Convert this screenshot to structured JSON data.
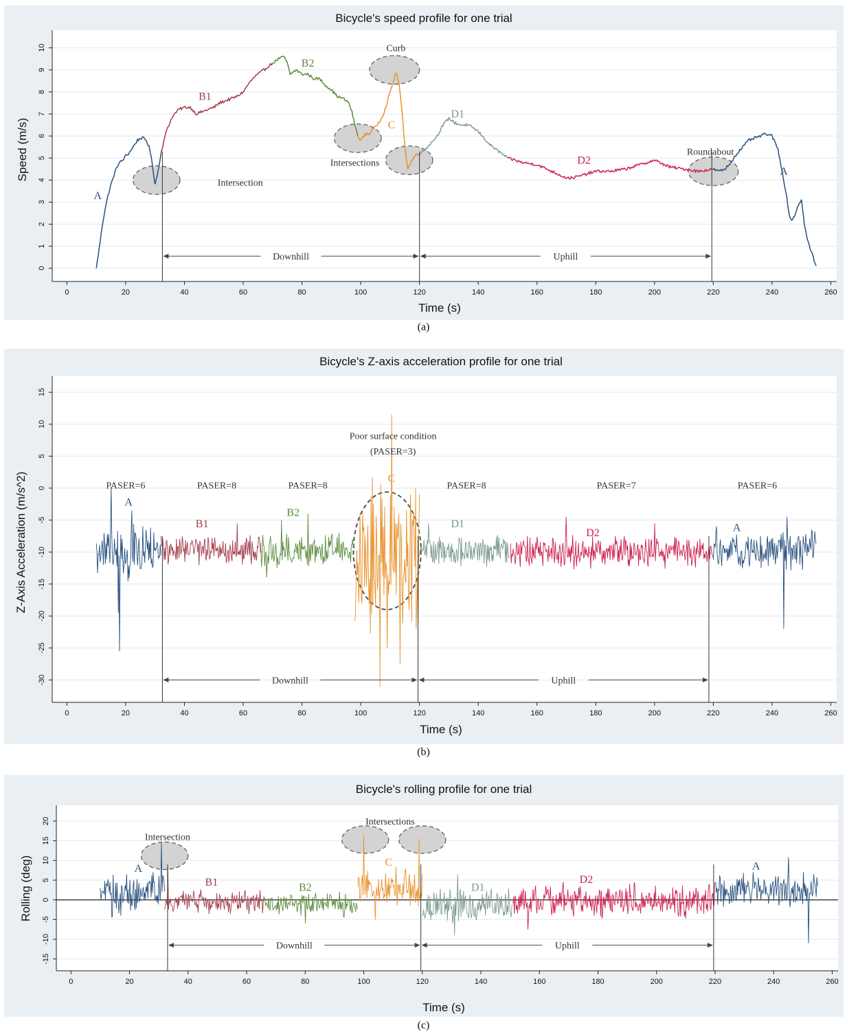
{
  "captions": [
    "(a)",
    "(b)",
    "(c)"
  ],
  "chart_data": [
    {
      "type": "line",
      "title": "Bicycle's speed profile for one trial",
      "xlabel": "Time (s)",
      "ylabel": "Speed (m/s)",
      "xlim": [
        -5,
        262
      ],
      "ylim": [
        -0.6,
        10.8
      ],
      "xticks": [
        "0",
        "20",
        "40",
        "60",
        "80",
        "100",
        "120",
        "140",
        "160",
        "180",
        "200",
        "220",
        "240",
        "260"
      ],
      "yticks": [
        "0",
        "1",
        "2",
        "3",
        "4",
        "5",
        "6",
        "7",
        "8",
        "9",
        "10"
      ],
      "grid": "horizontal",
      "colors": {
        "A": "#264f7d",
        "B1": "#a23a48",
        "B2": "#5a8a3a",
        "C": "#e8912a",
        "D1": "#7a998f",
        "D2": "#cc1f4f"
      },
      "segments": [
        {
          "name": "A",
          "x": [
            10,
            11,
            12,
            13,
            14,
            15,
            16,
            17,
            18,
            19,
            20,
            21,
            22,
            23,
            24,
            25,
            26,
            27,
            28,
            29,
            30,
            31,
            32
          ],
          "values": [
            0.0,
            0.9,
            1.9,
            2.7,
            3.3,
            3.8,
            4.2,
            4.6,
            4.8,
            4.9,
            5.1,
            5.2,
            5.4,
            5.6,
            5.8,
            5.9,
            5.9,
            5.8,
            5.5,
            4.8,
            3.8,
            4.4,
            5.2
          ]
        },
        {
          "name": "B1",
          "x": [
            32,
            34,
            36,
            38,
            40,
            42,
            44,
            46,
            48,
            50,
            52,
            54,
            56,
            58,
            60,
            62,
            64,
            66,
            68,
            70
          ],
          "values": [
            5.2,
            6.3,
            6.9,
            7.2,
            7.3,
            7.3,
            7.0,
            7.1,
            7.2,
            7.3,
            7.5,
            7.6,
            7.7,
            7.8,
            8.0,
            8.4,
            8.7,
            8.9,
            9.1,
            9.3
          ]
        },
        {
          "name": "B2",
          "x": [
            70,
            72,
            74,
            75,
            76,
            78,
            80,
            82,
            84,
            86,
            88,
            90,
            92,
            94,
            96,
            97,
            98,
            99
          ],
          "values": [
            9.3,
            9.5,
            9.6,
            9.3,
            8.8,
            9.0,
            8.8,
            8.8,
            8.6,
            8.6,
            8.3,
            8.1,
            7.8,
            7.7,
            7.5,
            7.1,
            6.5,
            6.0
          ]
        },
        {
          "name": "C",
          "x": [
            99,
            100,
            101,
            102,
            103,
            104,
            105,
            106,
            107,
            108,
            109,
            110,
            111,
            112,
            113,
            114,
            115,
            116,
            117,
            118,
            119,
            120
          ],
          "values": [
            6.0,
            5.8,
            6.0,
            6.1,
            6.1,
            6.3,
            6.4,
            6.6,
            6.8,
            7.1,
            7.5,
            8.0,
            8.4,
            8.9,
            8.4,
            7.2,
            5.6,
            4.5,
            4.8,
            5.0,
            5.2,
            5.2
          ]
        },
        {
          "name": "D1",
          "x": [
            120,
            122,
            124,
            126,
            128,
            130,
            132,
            134,
            136,
            138,
            140,
            142,
            144,
            146,
            148,
            150
          ],
          "values": [
            5.2,
            5.4,
            5.7,
            6.0,
            6.5,
            6.8,
            6.6,
            6.5,
            6.5,
            6.4,
            6.2,
            5.9,
            5.6,
            5.4,
            5.2,
            5.0
          ]
        },
        {
          "name": "D2",
          "x": [
            150,
            155,
            160,
            165,
            170,
            172,
            175,
            180,
            185,
            190,
            195,
            200,
            205,
            210,
            215,
            220
          ],
          "values": [
            5.0,
            4.8,
            4.7,
            4.4,
            4.1,
            4.1,
            4.2,
            4.4,
            4.4,
            4.5,
            4.7,
            4.9,
            4.6,
            4.5,
            4.4,
            4.5
          ]
        },
        {
          "name": "A",
          "x": [
            220,
            222,
            224,
            226,
            228,
            230,
            232,
            234,
            236,
            238,
            240,
            242,
            244,
            245,
            246,
            247,
            248,
            249,
            250,
            251,
            252,
            253,
            254,
            255
          ],
          "values": [
            4.5,
            4.4,
            4.5,
            4.8,
            5.2,
            5.5,
            5.8,
            5.9,
            6.0,
            6.1,
            6.0,
            5.4,
            4.0,
            3.2,
            2.3,
            2.2,
            2.5,
            2.9,
            3.1,
            2.0,
            1.3,
            0.9,
            0.5,
            0.1
          ]
        }
      ],
      "segment_labels": [
        {
          "text": "A",
          "x": 10.5,
          "y": 3.3,
          "series": "A"
        },
        {
          "text": "B1",
          "x": 47,
          "y": 7.8,
          "series": "B1"
        },
        {
          "text": "B2",
          "x": 82,
          "y": 9.3,
          "series": "B2"
        },
        {
          "text": "C",
          "x": 110.5,
          "y": 6.5,
          "series": "C"
        },
        {
          "text": "D1",
          "x": 133,
          "y": 7.0,
          "series": "D1"
        },
        {
          "text": "D2",
          "x": 176,
          "y": 4.9,
          "series": "D2"
        },
        {
          "text": "A",
          "x": 244,
          "y": 4.4,
          "series": "A"
        }
      ],
      "annotations": [
        {
          "text": "Intersection",
          "x": 59,
          "y": 3.9
        },
        {
          "text": "Intersections",
          "x": 98,
          "y": 4.8
        },
        {
          "text": "Curb",
          "x": 112,
          "y": 10.0
        },
        {
          "text": "Roundabout",
          "x": 219,
          "y": 5.3
        }
      ],
      "ellipses": [
        {
          "cx": 30.5,
          "cy": 4.0,
          "rx": 8,
          "ry": 0.65
        },
        {
          "cx": 99,
          "cy": 5.9,
          "rx": 8,
          "ry": 0.65
        },
        {
          "cx": 111.5,
          "cy": 9.0,
          "rx": 8.5,
          "ry": 0.65
        },
        {
          "cx": 116.5,
          "cy": 4.9,
          "rx": 8,
          "ry": 0.65
        },
        {
          "cx": 220,
          "cy": 4.4,
          "rx": 8.5,
          "ry": 0.65
        }
      ],
      "vlines": [
        32.5,
        120,
        219.5
      ],
      "vline_ymax": 5.3,
      "arrows": [
        {
          "text": "Downhill",
          "x1": 32.5,
          "x2": 120,
          "y": 0.55
        },
        {
          "text": "Uphill",
          "x1": 120,
          "x2": 219.5,
          "y": 0.55
        }
      ],
      "zero_line": false
    },
    {
      "type": "line",
      "title": "Bicycle's Z-axis acceleration profile for one trial",
      "xlabel": "Time (s)",
      "ylabel": "Z-Axis Acceleration (m/s^2)",
      "xlim": [
        -5,
        262
      ],
      "ylim": [
        -33.5,
        17.5
      ],
      "xticks": [
        "0",
        "20",
        "40",
        "60",
        "80",
        "100",
        "120",
        "140",
        "160",
        "180",
        "200",
        "220",
        "240",
        "260"
      ],
      "yticks": [
        "15",
        "10",
        "5",
        "0",
        "-5",
        "-10",
        "-15",
        "-20",
        "-25",
        "-30"
      ],
      "grid": "horizontal",
      "colors": {
        "A": "#264f7d",
        "B1": "#a23a48",
        "B2": "#5a8a3a",
        "C": "#e8912a",
        "D1": "#7a998f",
        "D2": "#cc1f4f"
      },
      "noise": [
        {
          "name": "A",
          "x0": 10,
          "x1": 32,
          "mean": -9.8,
          "amp": 5.0,
          "spikes": [
            [
              15,
              0.2
            ],
            [
              18,
              -25.5
            ],
            [
              17.5,
              -19.5
            ],
            [
              22,
              -3.5
            ]
          ]
        },
        {
          "name": "B1",
          "x0": 32,
          "x1": 66,
          "mean": -9.8,
          "amp": 3.0,
          "spikes": [
            [
              58,
              -5.5
            ]
          ]
        },
        {
          "name": "B2",
          "x0": 66,
          "x1": 98,
          "mean": -9.8,
          "amp": 3.0,
          "spikes": [
            [
              82,
              -4.0
            ],
            [
              73,
              -5.0
            ],
            [
              68,
              -14.0
            ]
          ]
        },
        {
          "name": "C",
          "x0": 98,
          "x1": 120,
          "mean": -9.8,
          "amp": 14.0,
          "spikes": [
            [
              110.5,
              11.5
            ],
            [
              106.5,
              -31.0
            ],
            [
              109,
              -25.0
            ],
            [
              113.5,
              -27.5
            ],
            [
              119,
              -22.0
            ],
            [
              117,
              -1.0
            ]
          ]
        },
        {
          "name": "D1",
          "x0": 120,
          "x1": 151,
          "mean": -9.8,
          "amp": 3.0,
          "spikes": [
            [
              123,
              -5.5
            ]
          ]
        },
        {
          "name": "D2",
          "x0": 151,
          "x1": 220,
          "mean": -9.8,
          "amp": 3.0,
          "spikes": [
            [
              170,
              -4.5
            ],
            [
              200,
              -5.5
            ]
          ]
        },
        {
          "name": "A",
          "x0": 220,
          "x1": 255,
          "mean": -9.8,
          "amp": 3.5,
          "spikes": [
            [
              244,
              -22.0
            ],
            [
              245,
              -4.5
            ],
            [
              221,
              -6.0
            ]
          ]
        }
      ],
      "segment_labels": [
        {
          "text": "A",
          "x": 21,
          "y": -2.2,
          "series": "A"
        },
        {
          "text": "B1",
          "x": 46,
          "y": -5.6,
          "series": "B1"
        },
        {
          "text": "B2",
          "x": 77,
          "y": -3.8,
          "series": "B2"
        },
        {
          "text": "C",
          "x": 110.5,
          "y": 1.5,
          "series": "C"
        },
        {
          "text": "D1",
          "x": 133,
          "y": -5.6,
          "series": "D1"
        },
        {
          "text": "D2",
          "x": 179,
          "y": -7.0,
          "series": "D2"
        },
        {
          "text": "A",
          "x": 228,
          "y": -6.2,
          "series": "A"
        }
      ],
      "annotations": [
        {
          "text": "PASER=6",
          "x": 20,
          "y": 0.5
        },
        {
          "text": "PASER=8",
          "x": 51,
          "y": 0.5
        },
        {
          "text": "PASER=8",
          "x": 82,
          "y": 0.5
        },
        {
          "text": "Poor surface condition",
          "x": 111,
          "y": 8.2
        },
        {
          "text": "(PASER=3)",
          "x": 111,
          "y": 5.8
        },
        {
          "text": "PASER=8",
          "x": 136,
          "y": 0.5
        },
        {
          "text": "PASER=7",
          "x": 187,
          "y": 0.5
        },
        {
          "text": "PASER=6",
          "x": 235,
          "y": 0.5
        }
      ],
      "ellipses": [
        {
          "cx": 109,
          "cy": -9.8,
          "rx": 11.5,
          "ry": 9.2,
          "dashed_only": true
        }
      ],
      "vlines": [
        32.5,
        119.5,
        218.5
      ],
      "vline_ymax": -7.5,
      "arrows": [
        {
          "text": "Downhill",
          "x1": 32.5,
          "x2": 119.5,
          "y": -30.0
        },
        {
          "text": "Uphill",
          "x1": 119.5,
          "x2": 218.5,
          "y": -30.0
        }
      ],
      "zero_line": false
    },
    {
      "type": "line",
      "title": "Bicycle's rolling profile for one trial",
      "xlabel": "Time (s)",
      "ylabel": "Rolling (deg)",
      "xlim": [
        -5,
        262
      ],
      "ylim": [
        -18,
        24
      ],
      "xticks": [
        "0",
        "20",
        "40",
        "60",
        "80",
        "100",
        "120",
        "140",
        "160",
        "180",
        "200",
        "220",
        "240",
        "260"
      ],
      "yticks": [
        "20",
        "15",
        "10",
        "5",
        "0",
        "-5",
        "-10",
        "-15"
      ],
      "grid": "horizontal",
      "colors": {
        "A": "#264f7d",
        "B1": "#a23a48",
        "B2": "#5a8a3a",
        "C": "#e8912a",
        "D1": "#7a998f",
        "D2": "#cc1f4f"
      },
      "noise": [
        {
          "name": "A",
          "x0": 10,
          "x1": 32,
          "mean": 1.5,
          "amp": 6.0,
          "spikes": [
            [
              31,
              14.5
            ],
            [
              19,
              6.5
            ],
            [
              28,
              7.0
            ],
            [
              14,
              -4.5
            ]
          ]
        },
        {
          "name": "B1",
          "x0": 32,
          "x1": 66,
          "mean": -0.5,
          "amp": 3.5,
          "spikes": [
            [
              33,
              8.0
            ]
          ]
        },
        {
          "name": "B2",
          "x0": 66,
          "x1": 98,
          "mean": -1.0,
          "amp": 3.5,
          "spikes": [
            [
              80,
              -6.0
            ]
          ]
        },
        {
          "name": "C",
          "x0": 98,
          "x1": 120,
          "mean": 3.0,
          "amp": 6.0,
          "spikes": [
            [
              100,
              16.5
            ],
            [
              119,
              15.5
            ],
            [
              104,
              -5.0
            ],
            [
              114,
              7.0
            ]
          ]
        },
        {
          "name": "D1",
          "x0": 120,
          "x1": 151,
          "mean": -1.5,
          "amp": 5.0,
          "spikes": [
            [
              132,
              6.5
            ],
            [
              131,
              -9.0
            ]
          ]
        },
        {
          "name": "D2",
          "x0": 151,
          "x1": 220,
          "mean": 0.0,
          "amp": 5.0,
          "spikes": [
            [
              156,
              -7.5
            ]
          ]
        },
        {
          "name": "A",
          "x0": 220,
          "x1": 255,
          "mean": 2.5,
          "amp": 5.0,
          "spikes": [
            [
              233,
              7.0
            ],
            [
              245,
              10.8
            ],
            [
              252,
              -11.0
            ]
          ]
        }
      ],
      "segment_labels": [
        {
          "text": "A",
          "x": 23,
          "y": 8.0,
          "series": "A"
        },
        {
          "text": "B1",
          "x": 48,
          "y": 4.5,
          "series": "B1"
        },
        {
          "text": "B2",
          "x": 80,
          "y": 3.2,
          "series": "B2"
        },
        {
          "text": "C",
          "x": 108.5,
          "y": 9.5,
          "series": "C"
        },
        {
          "text": "D1",
          "x": 139,
          "y": 3.2,
          "series": "D1"
        },
        {
          "text": "D2",
          "x": 176,
          "y": 5.2,
          "series": "D2"
        },
        {
          "text": "A",
          "x": 234,
          "y": 8.6,
          "series": "A"
        }
      ],
      "annotations": [
        {
          "text": "Intersection",
          "x": 33,
          "y": 16.1
        },
        {
          "text": "Intersections",
          "x": 109,
          "y": 20.0
        }
      ],
      "ellipses": [
        {
          "cx": 32,
          "cy": 11.2,
          "rx": 8,
          "ry": 3.5
        },
        {
          "cx": 100.5,
          "cy": 15.3,
          "rx": 8,
          "ry": 3.5
        },
        {
          "cx": 120,
          "cy": 15.3,
          "rx": 8,
          "ry": 3.5
        }
      ],
      "vlines": [
        33,
        119.5,
        219.5
      ],
      "vline_ymax": 9.0,
      "arrows": [
        {
          "text": "Downhill",
          "x1": 33,
          "x2": 119.5,
          "y": -11.5
        },
        {
          "text": "Uphill",
          "x1": 119.5,
          "x2": 219.5,
          "y": -11.5
        }
      ],
      "zero_line": true
    }
  ]
}
